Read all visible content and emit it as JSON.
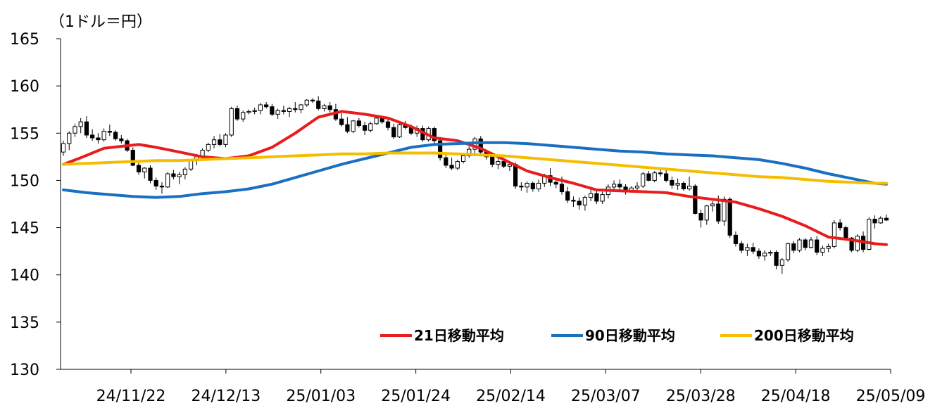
{
  "chart_data": {
    "type": "candlestick",
    "unit_label": "（1ドル＝円）",
    "ylim": [
      130,
      165
    ],
    "yticks": [
      "165",
      "160",
      "155",
      "150",
      "145",
      "140",
      "135",
      "130"
    ],
    "xticks": [
      "24/11/22",
      "24/12/13",
      "25/01/03",
      "25/01/24",
      "25/02/14",
      "25/03/07",
      "25/03/28",
      "25/04/18",
      "25/05/09"
    ],
    "grid": false,
    "legend_position": "bottom-right",
    "candles": [
      [
        153.0,
        154.2,
        152.6,
        153.9
      ],
      [
        153.9,
        155.2,
        153.2,
        155.0
      ],
      [
        155.0,
        156.0,
        154.6,
        155.7
      ],
      [
        155.7,
        156.6,
        155.0,
        156.2
      ],
      [
        156.2,
        156.8,
        154.5,
        154.8
      ],
      [
        154.8,
        155.4,
        154.2,
        154.5
      ],
      [
        154.5,
        155.0,
        153.9,
        154.3
      ],
      [
        154.3,
        155.5,
        154.1,
        155.2
      ],
      [
        155.2,
        155.9,
        154.7,
        155.1
      ],
      [
        155.1,
        155.3,
        154.2,
        154.4
      ],
      [
        154.4,
        154.8,
        153.9,
        154.2
      ],
      [
        154.2,
        154.4,
        153.0,
        153.2
      ],
      [
        153.2,
        153.5,
        151.5,
        151.6
      ],
      [
        151.6,
        151.9,
        150.6,
        150.9
      ],
      [
        150.9,
        151.4,
        150.2,
        151.3
      ],
      [
        151.3,
        151.6,
        149.7,
        150.0
      ],
      [
        150.0,
        150.3,
        149.0,
        149.4
      ],
      [
        149.4,
        149.8,
        148.6,
        149.3
      ],
      [
        149.3,
        150.9,
        149.2,
        150.7
      ],
      [
        150.7,
        151.1,
        150.1,
        150.4
      ],
      [
        150.4,
        150.9,
        149.6,
        150.6
      ],
      [
        150.6,
        151.4,
        150.1,
        151.2
      ],
      [
        151.2,
        152.2,
        151.0,
        152.1
      ],
      [
        152.1,
        152.8,
        151.6,
        152.6
      ],
      [
        152.6,
        153.4,
        152.2,
        153.2
      ],
      [
        153.2,
        154.0,
        153.0,
        153.8
      ],
      [
        153.8,
        154.7,
        153.4,
        154.3
      ],
      [
        154.3,
        154.9,
        153.6,
        153.8
      ],
      [
        153.8,
        155.0,
        153.5,
        154.8
      ],
      [
        154.8,
        157.8,
        154.6,
        157.6
      ],
      [
        157.6,
        157.9,
        156.3,
        156.5
      ],
      [
        156.5,
        157.4,
        156.2,
        157.2
      ],
      [
        157.2,
        157.5,
        157.0,
        157.3
      ],
      [
        157.3,
        157.7,
        157.0,
        157.4
      ],
      [
        157.4,
        158.2,
        157.0,
        158.0
      ],
      [
        158.0,
        158.3,
        157.6,
        157.8
      ],
      [
        157.8,
        158.1,
        156.8,
        157.0
      ],
      [
        157.0,
        157.6,
        156.5,
        157.4
      ],
      [
        157.4,
        157.9,
        157.0,
        157.3
      ],
      [
        157.3,
        157.8,
        156.7,
        157.6
      ],
      [
        157.6,
        158.3,
        157.2,
        157.5
      ],
      [
        157.5,
        158.1,
        157.1,
        158.0
      ],
      [
        158.0,
        158.6,
        157.8,
        158.5
      ],
      [
        158.5,
        158.7,
        158.2,
        158.4
      ],
      [
        158.4,
        158.9,
        157.4,
        157.6
      ],
      [
        157.6,
        158.1,
        157.3,
        157.9
      ],
      [
        157.9,
        158.3,
        157.2,
        157.5
      ],
      [
        157.5,
        158.1,
        156.3,
        156.5
      ],
      [
        156.5,
        157.1,
        155.7,
        155.9
      ],
      [
        155.9,
        156.7,
        155.0,
        155.2
      ],
      [
        155.2,
        156.4,
        155.0,
        156.3
      ],
      [
        156.3,
        156.6,
        155.6,
        155.8
      ],
      [
        155.8,
        156.2,
        154.8,
        155.3
      ],
      [
        155.3,
        156.2,
        155.1,
        156.0
      ],
      [
        156.0,
        156.8,
        155.9,
        156.6
      ],
      [
        156.6,
        156.8,
        156.0,
        156.2
      ],
      [
        156.2,
        156.5,
        155.3,
        155.6
      ],
      [
        155.6,
        156.0,
        154.4,
        154.6
      ],
      [
        154.6,
        156.1,
        154.5,
        155.9
      ],
      [
        155.9,
        156.3,
        155.4,
        155.6
      ],
      [
        155.6,
        155.9,
        154.8,
        155.0
      ],
      [
        155.0,
        155.8,
        154.6,
        155.5
      ],
      [
        155.5,
        155.8,
        154.1,
        154.3
      ],
      [
        154.3,
        155.7,
        154.1,
        155.5
      ],
      [
        155.5,
        155.7,
        153.8,
        154.2
      ],
      [
        154.2,
        154.6,
        152.1,
        152.4
      ],
      [
        152.4,
        152.8,
        151.3,
        151.6
      ],
      [
        151.6,
        152.4,
        151.1,
        151.3
      ],
      [
        151.3,
        152.2,
        151.1,
        152.0
      ],
      [
        152.0,
        152.9,
        151.8,
        152.6
      ],
      [
        152.6,
        153.6,
        152.4,
        153.3
      ],
      [
        153.3,
        154.6,
        152.8,
        154.4
      ],
      [
        154.4,
        154.7,
        152.7,
        153.0
      ],
      [
        153.0,
        153.2,
        152.2,
        152.5
      ],
      [
        152.5,
        152.8,
        151.4,
        151.7
      ],
      [
        151.7,
        152.3,
        151.2,
        152.0
      ],
      [
        152.0,
        152.4,
        151.3,
        151.5
      ],
      [
        151.5,
        151.8,
        151.0,
        151.7
      ],
      [
        151.7,
        151.9,
        149.1,
        149.4
      ],
      [
        149.4,
        149.8,
        148.9,
        149.3
      ],
      [
        149.3,
        149.9,
        148.7,
        149.7
      ],
      [
        149.7,
        149.9,
        148.8,
        149.1
      ],
      [
        149.1,
        150.1,
        148.8,
        149.7
      ],
      [
        149.7,
        150.7,
        149.3,
        150.5
      ],
      [
        150.5,
        151.3,
        149.4,
        149.8
      ],
      [
        149.8,
        150.2,
        149.2,
        149.6
      ],
      [
        149.6,
        150.4,
        148.5,
        148.8
      ],
      [
        148.8,
        149.3,
        147.6,
        147.9
      ],
      [
        147.9,
        148.3,
        147.2,
        147.8
      ],
      [
        147.8,
        148.2,
        146.9,
        147.4
      ],
      [
        147.4,
        148.4,
        146.8,
        148.2
      ],
      [
        148.2,
        149.3,
        147.8,
        148.6
      ],
      [
        148.6,
        149.0,
        147.5,
        147.8
      ],
      [
        147.8,
        148.8,
        147.5,
        148.5
      ],
      [
        148.5,
        149.6,
        148.1,
        149.3
      ],
      [
        149.3,
        150.0,
        148.8,
        149.6
      ],
      [
        149.6,
        150.1,
        149.0,
        149.3
      ],
      [
        149.3,
        149.6,
        148.5,
        148.9
      ],
      [
        148.9,
        149.4,
        148.7,
        149.2
      ],
      [
        149.2,
        149.8,
        148.9,
        149.4
      ],
      [
        149.4,
        150.9,
        149.2,
        150.7
      ],
      [
        150.7,
        151.0,
        149.9,
        150.0
      ],
      [
        150.0,
        151.0,
        149.8,
        150.8
      ],
      [
        150.8,
        151.1,
        150.4,
        150.7
      ],
      [
        150.7,
        151.3,
        149.8,
        150.0
      ],
      [
        150.0,
        150.4,
        149.1,
        149.5
      ],
      [
        149.5,
        150.2,
        149.0,
        149.7
      ],
      [
        149.7,
        149.9,
        148.9,
        149.1
      ],
      [
        149.1,
        150.4,
        148.9,
        149.4
      ],
      [
        149.4,
        149.6,
        146.4,
        146.5
      ],
      [
        146.5,
        146.9,
        145.0,
        145.8
      ],
      [
        145.8,
        147.4,
        145.3,
        147.3
      ],
      [
        147.3,
        147.8,
        146.7,
        147.5
      ],
      [
        147.5,
        148.4,
        145.4,
        145.7
      ],
      [
        145.7,
        148.3,
        145.2,
        148.0
      ],
      [
        148.0,
        148.2,
        143.9,
        144.2
      ],
      [
        144.2,
        144.6,
        143.0,
        143.3
      ],
      [
        143.3,
        143.6,
        142.3,
        142.6
      ],
      [
        142.6,
        143.3,
        142.0,
        142.9
      ],
      [
        142.9,
        143.4,
        142.2,
        142.5
      ],
      [
        142.5,
        142.8,
        141.7,
        142.0
      ],
      [
        142.0,
        142.6,
        141.5,
        142.3
      ],
      [
        142.3,
        142.6,
        142.0,
        142.4
      ],
      [
        142.4,
        142.6,
        140.6,
        141.0
      ],
      [
        141.0,
        141.8,
        140.1,
        141.6
      ],
      [
        141.6,
        143.4,
        141.4,
        143.3
      ],
      [
        143.3,
        143.6,
        142.3,
        142.6
      ],
      [
        142.6,
        143.9,
        142.4,
        143.7
      ],
      [
        143.7,
        143.9,
        142.6,
        142.9
      ],
      [
        142.9,
        144.0,
        142.8,
        143.7
      ],
      [
        143.7,
        144.1,
        142.1,
        142.4
      ],
      [
        142.4,
        143.1,
        142.0,
        142.8
      ],
      [
        142.8,
        143.3,
        142.4,
        143.0
      ],
      [
        143.0,
        145.8,
        142.8,
        145.5
      ],
      [
        145.5,
        145.9,
        144.7,
        145.0
      ],
      [
        145.0,
        145.2,
        143.7,
        143.9
      ],
      [
        143.9,
        144.0,
        142.4,
        142.6
      ],
      [
        142.6,
        144.3,
        142.4,
        144.1
      ],
      [
        144.1,
        144.6,
        142.4,
        142.7
      ],
      [
        142.7,
        146.1,
        142.6,
        145.9
      ],
      [
        145.9,
        146.3,
        144.9,
        145.5
      ],
      [
        145.5,
        146.2,
        145.4,
        146.0
      ],
      [
        146.0,
        146.4,
        145.7,
        145.8
      ]
    ],
    "series": [
      {
        "name": "21日移動平均",
        "color": "#e81c1c",
        "x": [
          0,
          3,
          7,
          13,
          16,
          20,
          24,
          28,
          32,
          36,
          40,
          44,
          48,
          52,
          56,
          60,
          64,
          68,
          72,
          76,
          80,
          84,
          88,
          92,
          96,
          100,
          104,
          108,
          112,
          116,
          120,
          124,
          128,
          132,
          136,
          140,
          142
        ],
        "values": [
          151.7,
          152.4,
          153.4,
          153.8,
          153.5,
          153.0,
          152.5,
          152.3,
          152.6,
          153.5,
          155.0,
          156.7,
          157.3,
          157.0,
          156.6,
          155.7,
          154.5,
          154.2,
          153.4,
          152.2,
          151.0,
          150.3,
          149.7,
          149.0,
          148.9,
          148.8,
          148.7,
          148.3,
          148.0,
          147.7,
          147.0,
          146.2,
          145.2,
          144.0,
          143.7,
          143.3,
          143.2
        ]
      },
      {
        "name": "90日移動平均",
        "color": "#1a6fc1",
        "x": [
          0,
          4,
          8,
          12,
          16,
          20,
          24,
          28,
          32,
          36,
          40,
          44,
          48,
          52,
          56,
          60,
          64,
          68,
          72,
          76,
          80,
          84,
          88,
          92,
          96,
          100,
          104,
          108,
          112,
          116,
          120,
          124,
          128,
          132,
          136,
          140,
          142
        ],
        "values": [
          149.0,
          148.7,
          148.5,
          148.3,
          148.2,
          148.3,
          148.6,
          148.8,
          149.1,
          149.6,
          150.3,
          151.0,
          151.7,
          152.3,
          152.9,
          153.5,
          153.8,
          153.9,
          154.0,
          154.0,
          153.9,
          153.7,
          153.5,
          153.3,
          153.1,
          153.0,
          152.8,
          152.7,
          152.6,
          152.4,
          152.2,
          151.8,
          151.3,
          150.7,
          150.2,
          149.7,
          149.6
        ]
      },
      {
        "name": "200日移動平均",
        "color": "#f5bd00",
        "x": [
          0,
          4,
          8,
          12,
          16,
          20,
          24,
          28,
          32,
          36,
          40,
          44,
          48,
          52,
          56,
          60,
          64,
          68,
          72,
          76,
          80,
          84,
          88,
          92,
          96,
          100,
          104,
          108,
          112,
          116,
          120,
          124,
          128,
          132,
          136,
          140,
          142
        ],
        "values": [
          151.7,
          151.8,
          151.9,
          152.0,
          152.1,
          152.1,
          152.2,
          152.3,
          152.4,
          152.5,
          152.6,
          152.7,
          152.8,
          152.8,
          152.9,
          152.9,
          152.9,
          152.8,
          152.7,
          152.6,
          152.4,
          152.2,
          152.0,
          151.8,
          151.6,
          151.4,
          151.2,
          151.0,
          150.8,
          150.6,
          150.4,
          150.3,
          150.1,
          149.9,
          149.8,
          149.7,
          149.7
        ]
      }
    ]
  }
}
